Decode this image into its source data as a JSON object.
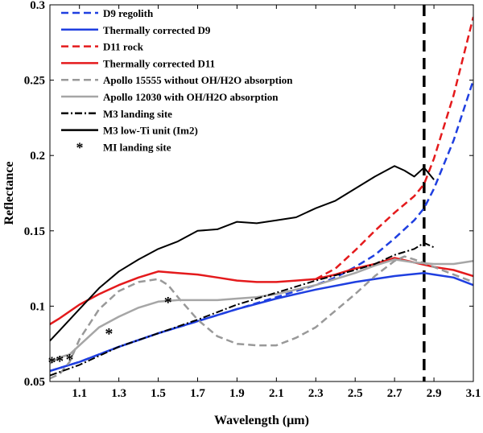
{
  "chart_data": {
    "type": "line",
    "xlabel": "Wavelength (μm)",
    "ylabel": "Reflectance",
    "xlim": [
      0.95,
      3.1
    ],
    "ylim": [
      0.05,
      0.3
    ],
    "x_ticks": [
      "1.1",
      "1.3",
      "1.5",
      "1.7",
      "1.9",
      "2.1",
      "2.3",
      "2.5",
      "2.7",
      "2.9",
      "3.1"
    ],
    "y_ticks": [
      "0.05",
      "0.1",
      "0.15",
      "0.2",
      "0.25",
      "0.3"
    ],
    "legend_position": "top-left",
    "reference_line": {
      "x": 2.85,
      "style": "dashed",
      "color": "#000000"
    },
    "series": [
      {
        "name": "D9 regolith",
        "color": "#1f3fe0",
        "style": "dashed",
        "width": 2.5,
        "x": [
          0.95,
          1.1,
          1.3,
          1.5,
          1.7,
          1.9,
          2.1,
          2.3,
          2.4,
          2.5,
          2.6,
          2.7,
          2.8,
          2.85,
          2.9,
          3.0,
          3.1
        ],
        "y": [
          0.057,
          0.063,
          0.073,
          0.082,
          0.09,
          0.098,
          0.106,
          0.114,
          0.119,
          0.126,
          0.134,
          0.145,
          0.157,
          0.165,
          0.178,
          0.21,
          0.25
        ]
      },
      {
        "name": "Thermally corrected D9",
        "color": "#1f3fe0",
        "style": "solid",
        "width": 2.5,
        "x": [
          0.95,
          1.1,
          1.3,
          1.5,
          1.7,
          1.9,
          2.1,
          2.3,
          2.5,
          2.7,
          2.85,
          2.9,
          3.0,
          3.1
        ],
        "y": [
          0.057,
          0.063,
          0.073,
          0.082,
          0.09,
          0.098,
          0.105,
          0.111,
          0.116,
          0.12,
          0.122,
          0.121,
          0.119,
          0.114
        ]
      },
      {
        "name": "D11 rock",
        "color": "#e41a1c",
        "style": "dashed",
        "width": 2.5,
        "x": [
          2.3,
          2.4,
          2.5,
          2.6,
          2.7,
          2.8,
          2.85,
          2.9,
          3.0,
          3.1
        ],
        "y": [
          0.118,
          0.125,
          0.137,
          0.15,
          0.162,
          0.173,
          0.181,
          0.198,
          0.24,
          0.292
        ]
      },
      {
        "name": "Thermally corrected D11",
        "color": "#e41a1c",
        "style": "solid",
        "width": 2.5,
        "x": [
          0.95,
          1.0,
          1.1,
          1.2,
          1.3,
          1.4,
          1.5,
          1.6,
          1.7,
          1.8,
          1.9,
          2.0,
          2.1,
          2.2,
          2.3,
          2.4,
          2.5,
          2.6,
          2.7,
          2.8,
          2.9,
          3.0,
          3.1
        ],
        "y": [
          0.088,
          0.092,
          0.101,
          0.108,
          0.114,
          0.119,
          0.123,
          0.122,
          0.121,
          0.119,
          0.117,
          0.116,
          0.116,
          0.117,
          0.118,
          0.121,
          0.125,
          0.128,
          0.132,
          0.129,
          0.126,
          0.124,
          0.12
        ]
      },
      {
        "name": "Apollo 15555 without OH/H2O absorption",
        "color": "#999999",
        "style": "dashed",
        "width": 2.5,
        "x": [
          0.95,
          1.0,
          1.05,
          1.1,
          1.2,
          1.3,
          1.4,
          1.5,
          1.55,
          1.6,
          1.7,
          1.8,
          1.9,
          2.0,
          2.1,
          2.2,
          2.3,
          2.4,
          2.5,
          2.6,
          2.7,
          2.75,
          2.8,
          2.9,
          3.0,
          3.1
        ],
        "y": [
          0.052,
          0.055,
          0.063,
          0.078,
          0.098,
          0.11,
          0.116,
          0.118,
          0.114,
          0.106,
          0.091,
          0.08,
          0.075,
          0.074,
          0.074,
          0.079,
          0.086,
          0.097,
          0.108,
          0.12,
          0.13,
          0.133,
          0.131,
          0.126,
          0.121,
          0.116
        ]
      },
      {
        "name": "Apollo 12030 with OH/H2O absorption",
        "color": "#a6a6a6",
        "style": "solid",
        "width": 2.5,
        "x": [
          0.95,
          1.0,
          1.05,
          1.1,
          1.2,
          1.3,
          1.4,
          1.5,
          1.6,
          1.7,
          1.8,
          1.9,
          2.0,
          2.1,
          2.2,
          2.3,
          2.4,
          2.5,
          2.6,
          2.7,
          2.8,
          2.9,
          3.0,
          3.1
        ],
        "y": [
          0.062,
          0.066,
          0.068,
          0.074,
          0.086,
          0.093,
          0.099,
          0.103,
          0.104,
          0.104,
          0.104,
          0.105,
          0.106,
          0.108,
          0.111,
          0.114,
          0.118,
          0.122,
          0.127,
          0.131,
          0.129,
          0.128,
          0.128,
          0.13
        ]
      },
      {
        "name": "M3 landing site",
        "color": "#000000",
        "style": "dashdot",
        "width": 2,
        "x": [
          0.95,
          1.1,
          1.3,
          1.5,
          1.7,
          1.9,
          2.1,
          2.3,
          2.5,
          2.6,
          2.7,
          2.8,
          2.85,
          2.9
        ],
        "y": [
          0.054,
          0.061,
          0.073,
          0.082,
          0.091,
          0.101,
          0.109,
          0.117,
          0.124,
          0.128,
          0.134,
          0.138,
          0.142,
          0.139
        ]
      },
      {
        "name": "M3 low-Ti unit (Im2)",
        "color": "#000000",
        "style": "solid",
        "width": 2,
        "x": [
          0.95,
          1.0,
          1.1,
          1.2,
          1.3,
          1.4,
          1.5,
          1.6,
          1.7,
          1.8,
          1.9,
          2.0,
          2.1,
          2.2,
          2.3,
          2.4,
          2.5,
          2.6,
          2.7,
          2.75,
          2.8,
          2.85,
          2.9
        ],
        "y": [
          0.077,
          0.084,
          0.098,
          0.112,
          0.123,
          0.131,
          0.138,
          0.143,
          0.15,
          0.151,
          0.156,
          0.155,
          0.157,
          0.159,
          0.165,
          0.17,
          0.178,
          0.186,
          0.193,
          0.19,
          0.186,
          0.192,
          0.184
        ]
      }
    ],
    "markers": {
      "name": "MI landing site",
      "symbol": "*",
      "color": "#000000",
      "x": [
        0.96,
        1.0,
        1.05,
        1.25,
        1.55
      ],
      "y": [
        0.063,
        0.064,
        0.065,
        0.082,
        0.103
      ]
    },
    "legend": [
      {
        "label": "D9 regolith",
        "line_color": "#1f3fe0",
        "line_style": "dashed"
      },
      {
        "label": "Thermally corrected D9",
        "line_color": "#1f3fe0",
        "line_style": "solid"
      },
      {
        "label": "D11 rock",
        "line_color": "#e41a1c",
        "line_style": "dashed"
      },
      {
        "label": "Thermally corrected D11",
        "line_color": "#e41a1c",
        "line_style": "solid"
      },
      {
        "label": "Apollo 15555 without OH/H2O absorption",
        "line_color": "#999999",
        "line_style": "dashed"
      },
      {
        "label": "Apollo 12030 with OH/H2O absorption",
        "line_color": "#a6a6a6",
        "line_style": "solid"
      },
      {
        "label": "M3 landing site",
        "line_color": "#000000",
        "line_style": "dashdot"
      },
      {
        "label": "M3 low-Ti unit (Im2)",
        "line_color": "#000000",
        "line_style": "solid"
      },
      {
        "label": "MI landing site",
        "line_color": "#000000",
        "line_style": "marker"
      }
    ]
  }
}
